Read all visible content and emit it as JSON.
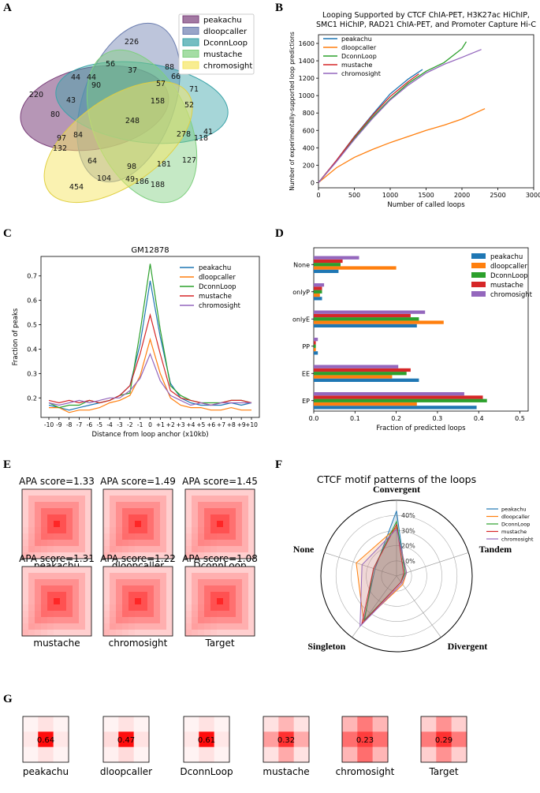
{
  "panel_labels": [
    "A",
    "B",
    "C",
    "D",
    "E",
    "F",
    "G"
  ],
  "chart_data": [
    {
      "id": "A",
      "type": "venn",
      "methods": [
        "peakachu",
        "dloopcaller",
        "DconnLoop",
        "mustache",
        "chromosight"
      ],
      "colors": [
        "#7a3f7a",
        "#6c7eb0",
        "#3aa3a8",
        "#7fcf7f",
        "#f5e663"
      ],
      "region_counts": [
        "226",
        "220",
        "158",
        "188",
        "454",
        "56",
        "37",
        "88",
        "66",
        "44",
        "44",
        "90",
        "57",
        "71",
        "43",
        "80",
        "52",
        "248",
        "41",
        "118",
        "278",
        "97",
        "84",
        "132",
        "64",
        "98",
        "181",
        "127",
        "104",
        "49",
        "186"
      ]
    },
    {
      "id": "B",
      "type": "line",
      "title_lines": [
        "Looping Supported by CTCF ChIA-PET, H3K27ac HiChIP,",
        "SMC1 HiChIP, RAD21 ChIA-PET, and Promoter Capture Hi-C"
      ],
      "xlabel": "Number of called loops",
      "ylabel": "Number of experimentally-supported loop predictions",
      "xlim": [
        0,
        3000
      ],
      "ylim": [
        -60,
        1700
      ],
      "xticks": [
        "0",
        "500",
        "1000",
        "1500",
        "2000",
        "2500",
        "3000"
      ],
      "yticks": [
        "0",
        "200",
        "400",
        "600",
        "800",
        "1000",
        "1200",
        "1400",
        "1600"
      ],
      "series": [
        {
          "name": "peakachu",
          "color": "#1f77b4",
          "x": [
            0,
            250,
            500,
            750,
            1000,
            1250,
            1450
          ],
          "y": [
            0,
            255,
            530,
            780,
            1020,
            1190,
            1300
          ]
        },
        {
          "name": "dloopcaller",
          "color": "#ff7f0e",
          "x": [
            0,
            250,
            500,
            750,
            1000,
            1250,
            1500,
            1750,
            2000,
            2320
          ],
          "y": [
            0,
            170,
            290,
            380,
            460,
            530,
            600,
            660,
            730,
            850
          ]
        },
        {
          "name": "DconnLoop",
          "color": "#2ca02c",
          "x": [
            0,
            250,
            500,
            750,
            1000,
            1250,
            1500,
            1750,
            2000,
            2060
          ],
          "y": [
            0,
            250,
            510,
            750,
            960,
            1140,
            1280,
            1380,
            1540,
            1620
          ]
        },
        {
          "name": "mustache",
          "color": "#d62728",
          "x": [
            0,
            250,
            500,
            750,
            1000,
            1250,
            1400
          ],
          "y": [
            0,
            255,
            525,
            770,
            990,
            1160,
            1250
          ]
        },
        {
          "name": "chromosight",
          "color": "#9467bd",
          "x": [
            0,
            250,
            500,
            750,
            1000,
            1250,
            1500,
            1750,
            2000,
            2270
          ],
          "y": [
            0,
            240,
            495,
            735,
            950,
            1120,
            1260,
            1360,
            1440,
            1530
          ]
        }
      ]
    },
    {
      "id": "C",
      "type": "line",
      "title": "GM12878",
      "xlabel": "Distance from loop anchor (x10kb)",
      "ylabel": "Fraction of peaks",
      "ylim": [
        0.12,
        0.78
      ],
      "xticks": [
        "-10",
        "-9",
        "-8",
        "-7",
        "-6",
        "-5",
        "-4",
        "-3",
        "-2",
        "-1",
        "0",
        "+1",
        "+2",
        "+3",
        "+4",
        "+5",
        "+6",
        "+7",
        "+8",
        "+9",
        "+10"
      ],
      "yticks": [
        "0.2",
        "0.3",
        "0.4",
        "0.5",
        "0.6",
        "0.7"
      ],
      "series": [
        {
          "name": "peakachu",
          "color": "#1f77b4",
          "y": [
            0.17,
            0.16,
            0.15,
            0.16,
            0.17,
            0.18,
            0.19,
            0.21,
            0.25,
            0.42,
            0.68,
            0.45,
            0.26,
            0.2,
            0.18,
            0.17,
            0.17,
            0.17,
            0.18,
            0.17,
            0.18
          ]
        },
        {
          "name": "dloopcaller",
          "color": "#ff7f0e",
          "y": [
            0.16,
            0.16,
            0.14,
            0.15,
            0.15,
            0.16,
            0.18,
            0.19,
            0.21,
            0.29,
            0.44,
            0.3,
            0.2,
            0.17,
            0.16,
            0.16,
            0.15,
            0.15,
            0.16,
            0.15,
            0.15
          ]
        },
        {
          "name": "DconnLoop",
          "color": "#2ca02c",
          "y": [
            0.18,
            0.16,
            0.17,
            0.17,
            0.19,
            0.18,
            0.19,
            0.21,
            0.22,
            0.47,
            0.75,
            0.48,
            0.25,
            0.21,
            0.19,
            0.18,
            0.18,
            0.18,
            0.19,
            0.19,
            0.18
          ]
        },
        {
          "name": "mustache",
          "color": "#d62728",
          "y": [
            0.19,
            0.18,
            0.19,
            0.18,
            0.19,
            0.18,
            0.19,
            0.21,
            0.25,
            0.38,
            0.54,
            0.38,
            0.23,
            0.2,
            0.19,
            0.18,
            0.17,
            0.18,
            0.19,
            0.19,
            0.18
          ]
        },
        {
          "name": "chromosight",
          "color": "#9467bd",
          "y": [
            0.18,
            0.17,
            0.18,
            0.19,
            0.18,
            0.19,
            0.2,
            0.2,
            0.23,
            0.28,
            0.38,
            0.27,
            0.21,
            0.19,
            0.17,
            0.18,
            0.17,
            0.18,
            0.18,
            0.18,
            0.18
          ]
        }
      ]
    },
    {
      "id": "D",
      "type": "bar",
      "orientation": "horizontal",
      "categories": [
        "None",
        "onlyP",
        "onlyE",
        "PP",
        "EE",
        "EP"
      ],
      "xlabel": "Fraction of predicted loops",
      "xlim": [
        0,
        0.52
      ],
      "xticks": [
        "0.0",
        "0.1",
        "0.2",
        "0.3",
        "0.4",
        "0.5"
      ],
      "series": [
        {
          "name": "peakachu",
          "color": "#1f77b4",
          "values": [
            0.06,
            0.02,
            0.25,
            0.01,
            0.255,
            0.395
          ]
        },
        {
          "name": "dloopcaller",
          "color": "#ff7f0e",
          "values": [
            0.2,
            0.015,
            0.315,
            0.005,
            0.19,
            0.25
          ]
        },
        {
          "name": "DconnLoop",
          "color": "#2ca02c",
          "values": [
            0.065,
            0.02,
            0.255,
            0.005,
            0.225,
            0.42
          ]
        },
        {
          "name": "mustache",
          "color": "#d62728",
          "values": [
            0.07,
            0.02,
            0.235,
            0.005,
            0.235,
            0.41
          ]
        },
        {
          "name": "chromosight",
          "color": "#9467bd",
          "values": [
            0.11,
            0.025,
            0.27,
            0.01,
            0.205,
            0.365
          ]
        }
      ]
    },
    {
      "id": "E",
      "type": "heatmap",
      "grid": 11,
      "items": [
        {
          "name": "peakachu",
          "score": "APA score=1.33"
        },
        {
          "name": "dloopcaller",
          "score": "APA score=1.49"
        },
        {
          "name": "DconnLoop",
          "score": "APA score=1.45"
        },
        {
          "name": "mustache",
          "score": "APA score=1.31"
        },
        {
          "name": "chromosight",
          "score": "APA score=1.22"
        },
        {
          "name": "Target",
          "score": "APA score=1.08"
        }
      ]
    },
    {
      "id": "F",
      "type": "radar",
      "title": "CTCF motif patterns of the loops",
      "axes": [
        "Convergent",
        "Tandem",
        "Divergent",
        "Singleton",
        "None"
      ],
      "rmax": 0.5,
      "rticks": [
        "10%",
        "20%",
        "30%",
        "40%"
      ],
      "series": [
        {
          "name": "peakachu",
          "color": "#1f77b4",
          "values": [
            0.43,
            0.06,
            0.05,
            0.37,
            0.15
          ]
        },
        {
          "name": "dloopcaller",
          "color": "#ff7f0e",
          "values": [
            0.32,
            0.07,
            0.07,
            0.37,
            0.28
          ]
        },
        {
          "name": "DconnLoop",
          "color": "#2ca02c",
          "values": [
            0.36,
            0.06,
            0.05,
            0.36,
            0.16
          ]
        },
        {
          "name": "mustache",
          "color": "#d62728",
          "values": [
            0.34,
            0.05,
            0.05,
            0.39,
            0.16
          ]
        },
        {
          "name": "chromosight",
          "color": "#9467bd",
          "values": [
            0.31,
            0.07,
            0.06,
            0.41,
            0.24
          ]
        }
      ]
    },
    {
      "id": "G",
      "type": "heatmap",
      "grid": 3,
      "items": [
        {
          "name": "peakachu",
          "value": "0.64",
          "cells": [
            0.05,
            0.12,
            0.05,
            0.1,
            1.0,
            0.1,
            0.05,
            0.12,
            0.05
          ]
        },
        {
          "name": "dloopcaller",
          "value": "0.47",
          "cells": [
            0.05,
            0.12,
            0.05,
            0.15,
            1.0,
            0.12,
            0.06,
            0.15,
            0.05
          ]
        },
        {
          "name": "DconnLoop",
          "value": "0.61",
          "cells": [
            0.05,
            0.12,
            0.05,
            0.1,
            1.0,
            0.1,
            0.05,
            0.12,
            0.05
          ]
        },
        {
          "name": "mustache",
          "value": "0.32",
          "cells": [
            0.12,
            0.3,
            0.12,
            0.4,
            0.85,
            0.35,
            0.12,
            0.35,
            0.12
          ]
        },
        {
          "name": "chromosight",
          "value": "0.23",
          "cells": [
            0.3,
            0.55,
            0.3,
            0.6,
            0.8,
            0.6,
            0.3,
            0.6,
            0.3
          ]
        },
        {
          "name": "Target",
          "value": "0.29",
          "cells": [
            0.2,
            0.45,
            0.2,
            0.55,
            0.85,
            0.55,
            0.2,
            0.45,
            0.2
          ]
        }
      ]
    }
  ]
}
